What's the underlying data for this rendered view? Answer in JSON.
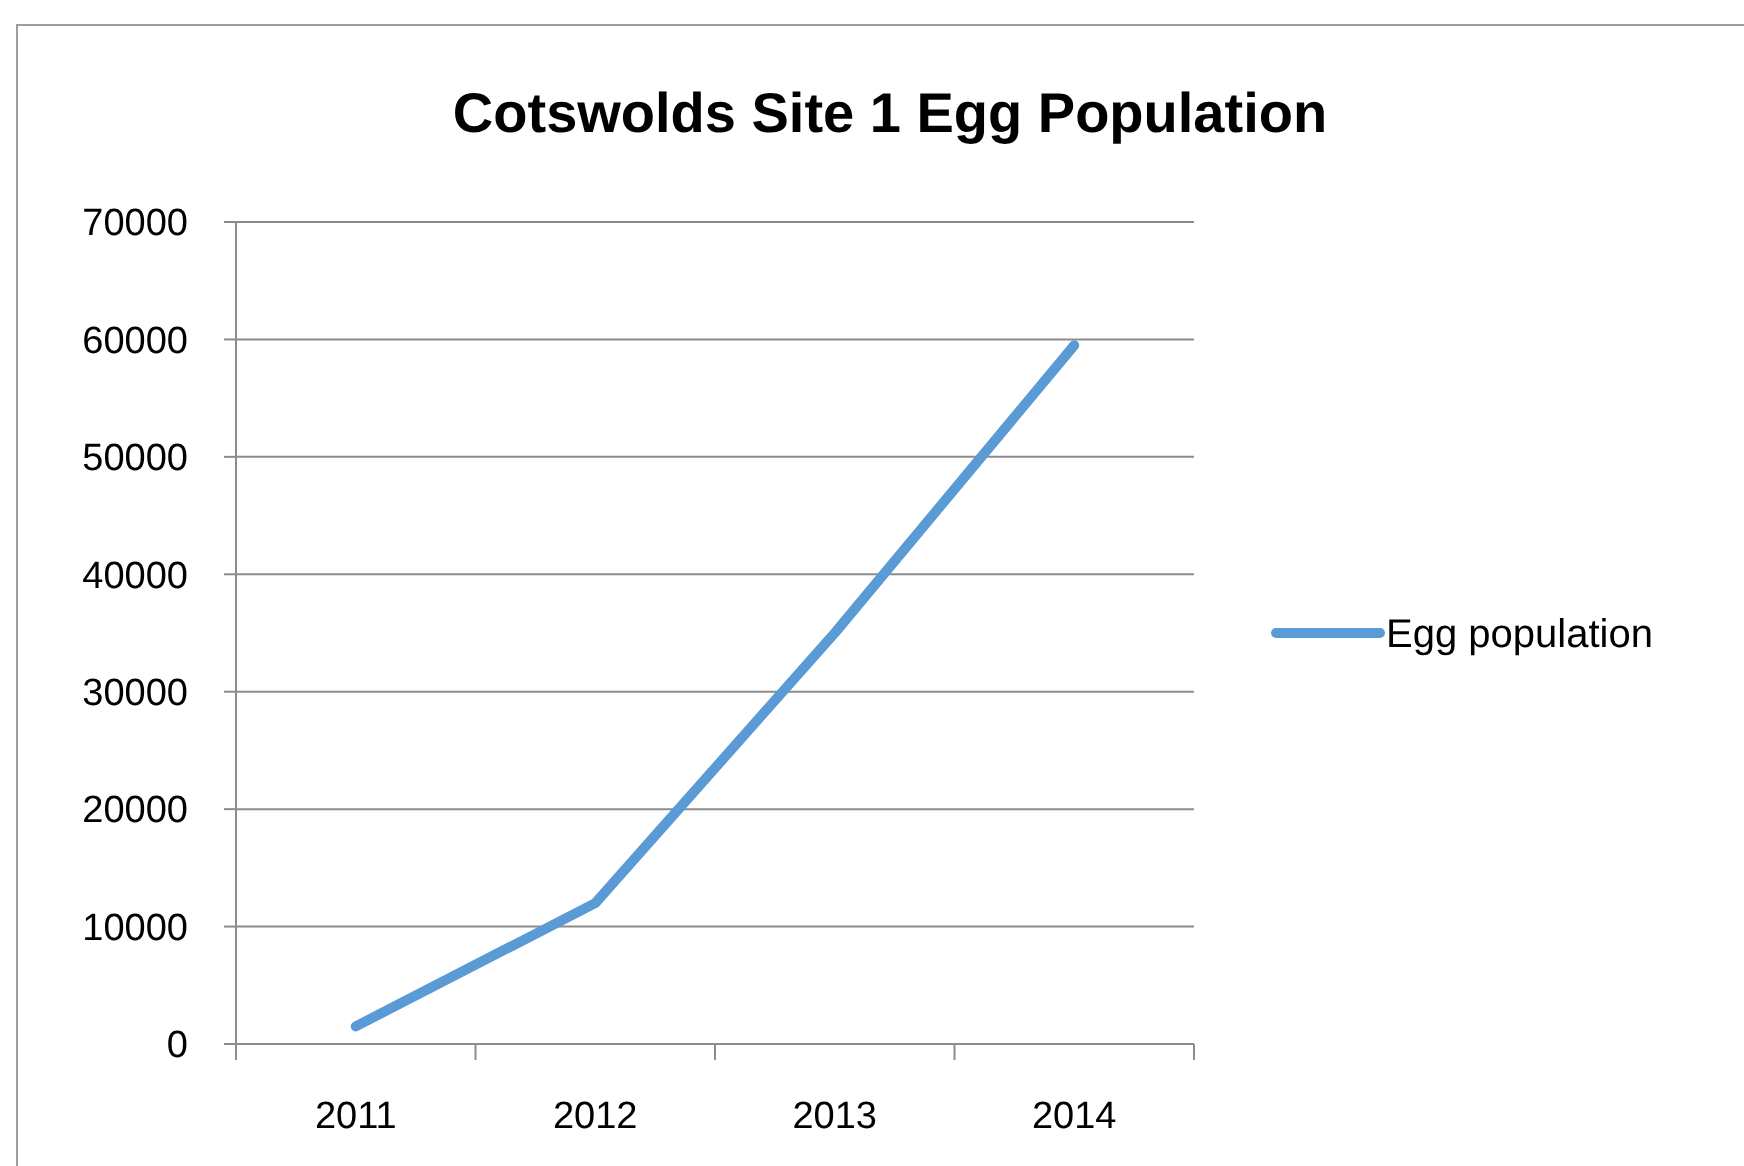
{
  "chart_data": {
    "type": "line",
    "title": "Cotswolds Site 1 Egg Population",
    "categories": [
      "2011",
      "2012",
      "2013",
      "2014"
    ],
    "series": [
      {
        "name": "Egg population",
        "color": "#5b9bd5",
        "values": [
          1500,
          12000,
          35000,
          59500
        ]
      }
    ],
    "ylim": [
      0,
      70000
    ],
    "yticks": [
      0,
      10000,
      20000,
      30000,
      40000,
      50000,
      60000,
      70000
    ],
    "grid": "y",
    "legend": "right",
    "line_style": "solid"
  }
}
